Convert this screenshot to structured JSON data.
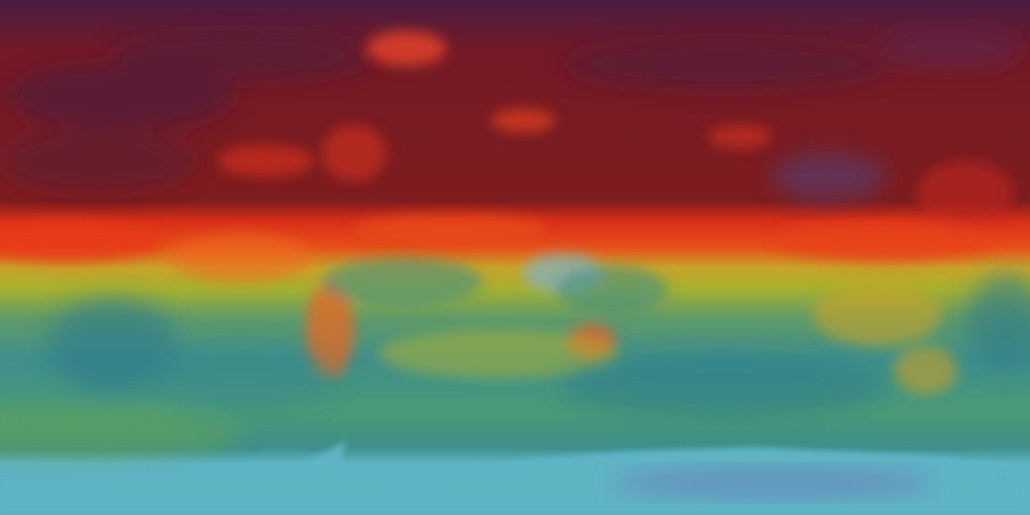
{
  "map": {
    "projection": "equirectangular",
    "colors": {
      "polar_top": "#4a1b42",
      "north_dark_red": "#7a1c22",
      "north_bright_red": "#e8341c",
      "orange_band": "#f07a1a",
      "yellow": "#c8c02a",
      "yellow_green": "#9aaa34",
      "teal": "#3f8f8c",
      "deep_teal": "#2e7a8a",
      "antarctica_cyan": "#5fb4c4",
      "antarctica_violet": "#6a78b8"
    }
  }
}
